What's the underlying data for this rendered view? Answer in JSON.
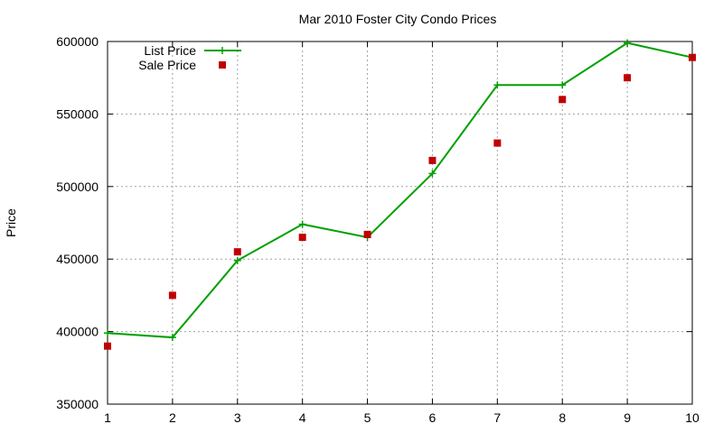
{
  "chart_data": {
    "type": "line",
    "title": "Mar 2010 Foster City Condo Prices",
    "xlabel": "",
    "ylabel": "Price",
    "x": [
      1,
      2,
      3,
      4,
      5,
      6,
      7,
      8,
      9,
      10
    ],
    "xlim": [
      1,
      10
    ],
    "ylim": [
      350000,
      600000
    ],
    "x_ticks": [
      1,
      2,
      3,
      4,
      5,
      6,
      7,
      8,
      9,
      10
    ],
    "y_ticks": [
      350000,
      400000,
      450000,
      500000,
      550000,
      600000
    ],
    "grid": true,
    "legend_position": "top-left",
    "series": [
      {
        "name": "List Price",
        "style": "line-with-plus-markers",
        "color": "#00a000",
        "values": [
          399000,
          396000,
          449000,
          474000,
          465000,
          509000,
          570000,
          570000,
          599000,
          589000
        ]
      },
      {
        "name": "Sale Price",
        "style": "square-markers",
        "color": "#c00000",
        "values": [
          390000,
          425000,
          455000,
          465000,
          467000,
          518000,
          530000,
          560000,
          575000,
          589000
        ]
      }
    ]
  }
}
